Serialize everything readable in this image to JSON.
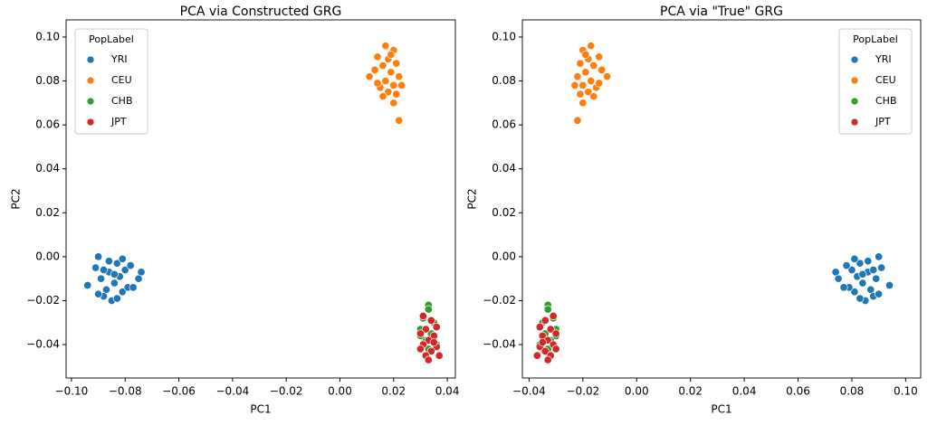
{
  "chart_data": [
    {
      "type": "scatter",
      "title": "PCA via Constructed GRG",
      "x_label": "PC1",
      "y_label": "PC2",
      "legend_title": "PopLabel",
      "legend": "upper left",
      "xlim": [
        -0.102,
        0.043
      ],
      "ylim": [
        -0.0552,
        0.1078
      ],
      "xticks": [
        {
          "value": -0.1,
          "label": "−0.10"
        },
        {
          "value": -0.08,
          "label": "−0.08"
        },
        {
          "value": -0.06,
          "label": "−0.06"
        },
        {
          "value": -0.04,
          "label": "−0.04"
        },
        {
          "value": -0.02,
          "label": "−0.02"
        },
        {
          "value": 0,
          "label": "0.00"
        },
        {
          "value": 0.02,
          "label": "0.02"
        },
        {
          "value": 0.04,
          "label": "0.04"
        }
      ],
      "yticks": [
        {
          "value": -0.04,
          "label": "−0.04"
        },
        {
          "value": -0.02,
          "label": "−0.02"
        },
        {
          "value": 0,
          "label": "0.00"
        },
        {
          "value": 0.02,
          "label": "0.02"
        },
        {
          "value": 0.04,
          "label": "0.04"
        },
        {
          "value": 0.06,
          "label": "0.06"
        },
        {
          "value": 0.08,
          "label": "0.08"
        },
        {
          "value": 0.1,
          "label": "0.10"
        }
      ],
      "series": [
        {
          "name": "YRI",
          "color": "#1f77b4",
          "x": [
            -0.09,
            -0.094,
            -0.091,
            -0.089,
            -0.087,
            -0.086,
            -0.085,
            -0.084,
            -0.083,
            -0.082,
            -0.081,
            -0.08,
            -0.079,
            -0.078,
            -0.077,
            -0.074,
            -0.075,
            -0.088,
            -0.083,
            -0.086,
            -0.09,
            -0.081,
            -0.088,
            -0.084
          ],
          "y": [
            0.0,
            -0.013,
            -0.005,
            -0.01,
            -0.015,
            -0.007,
            -0.02,
            -0.012,
            -0.003,
            -0.009,
            -0.016,
            -0.006,
            -0.014,
            -0.004,
            -0.014,
            -0.007,
            -0.01,
            -0.018,
            -0.019,
            -0.002,
            -0.017,
            -0.001,
            -0.006,
            -0.008
          ]
        },
        {
          "name": "CEU",
          "color": "#ff7f0e",
          "x": [
            0.017,
            0.02,
            0.014,
            0.018,
            0.016,
            0.021,
            0.013,
            0.019,
            0.022,
            0.011,
            0.017,
            0.02,
            0.015,
            0.023,
            0.018,
            0.016,
            0.021,
            0.02,
            0.022,
            0.019,
            0.014
          ],
          "y": [
            0.096,
            0.094,
            0.091,
            0.09,
            0.087,
            0.088,
            0.085,
            0.084,
            0.082,
            0.082,
            0.08,
            0.078,
            0.077,
            0.078,
            0.075,
            0.073,
            0.074,
            0.07,
            0.062,
            0.092,
            0.079
          ]
        },
        {
          "name": "CHB",
          "color": "#2ca02c",
          "x": [
            0.033,
            0.033,
            0.031,
            0.035,
            0.03,
            0.034,
            0.032,
            0.036,
            0.03,
            0.033
          ],
          "y": [
            -0.022,
            -0.024,
            -0.028,
            -0.03,
            -0.033,
            -0.035,
            -0.038,
            -0.04,
            -0.036,
            -0.042
          ]
        },
        {
          "name": "JPT",
          "color": "#d62728",
          "x": [
            0.031,
            0.034,
            0.036,
            0.032,
            0.03,
            0.035,
            0.033,
            0.031,
            0.036,
            0.034,
            0.032,
            0.037,
            0.03,
            0.033,
            0.035
          ],
          "y": [
            -0.027,
            -0.029,
            -0.032,
            -0.033,
            -0.035,
            -0.036,
            -0.038,
            -0.04,
            -0.041,
            -0.043,
            -0.045,
            -0.045,
            -0.042,
            -0.047,
            -0.039
          ]
        }
      ]
    },
    {
      "type": "scatter",
      "title": "PCA via \"True\" GRG",
      "x_label": "PC1",
      "y_label": "PC2",
      "legend_title": "PopLabel",
      "legend": "upper right",
      "xlim": [
        -0.0425,
        0.1056
      ],
      "ylim": [
        -0.0552,
        0.1078
      ],
      "xticks": [
        {
          "value": -0.04,
          "label": "−0.04"
        },
        {
          "value": -0.02,
          "label": "−0.02"
        },
        {
          "value": 0,
          "label": "0.00"
        },
        {
          "value": 0.02,
          "label": "0.02"
        },
        {
          "value": 0.04,
          "label": "0.04"
        },
        {
          "value": 0.06,
          "label": "0.06"
        },
        {
          "value": 0.08,
          "label": "0.08"
        },
        {
          "value": 0.1,
          "label": "0.10"
        }
      ],
      "yticks": [
        {
          "value": -0.04,
          "label": "−0.04"
        },
        {
          "value": -0.02,
          "label": "−0.02"
        },
        {
          "value": 0,
          "label": "0.00"
        },
        {
          "value": 0.02,
          "label": "0.02"
        },
        {
          "value": 0.04,
          "label": "0.04"
        },
        {
          "value": 0.06,
          "label": "0.06"
        },
        {
          "value": 0.08,
          "label": "0.08"
        },
        {
          "value": 0.1,
          "label": "0.10"
        }
      ],
      "series": [
        {
          "name": "YRI",
          "color": "#1f77b4",
          "x": [
            0.09,
            0.094,
            0.091,
            0.089,
            0.087,
            0.086,
            0.085,
            0.084,
            0.083,
            0.082,
            0.081,
            0.08,
            0.079,
            0.078,
            0.077,
            0.074,
            0.075,
            0.088,
            0.083,
            0.086,
            0.09,
            0.081,
            0.088,
            0.084
          ],
          "y": [
            0.0,
            -0.013,
            -0.005,
            -0.01,
            -0.015,
            -0.007,
            -0.02,
            -0.012,
            -0.003,
            -0.009,
            -0.016,
            -0.006,
            -0.014,
            -0.004,
            -0.014,
            -0.007,
            -0.01,
            -0.018,
            -0.019,
            -0.002,
            -0.017,
            -0.001,
            -0.006,
            -0.008
          ]
        },
        {
          "name": "CEU",
          "color": "#ff7f0e",
          "x": [
            -0.017,
            -0.02,
            -0.014,
            -0.018,
            -0.016,
            -0.021,
            -0.013,
            -0.019,
            -0.022,
            -0.011,
            -0.017,
            -0.02,
            -0.015,
            -0.023,
            -0.018,
            -0.016,
            -0.021,
            -0.02,
            -0.022,
            -0.019,
            -0.014
          ],
          "y": [
            0.096,
            0.094,
            0.091,
            0.09,
            0.087,
            0.088,
            0.085,
            0.084,
            0.082,
            0.082,
            0.08,
            0.078,
            0.077,
            0.078,
            0.075,
            0.073,
            0.074,
            0.07,
            0.062,
            0.092,
            0.079
          ]
        },
        {
          "name": "CHB",
          "color": "#2ca02c",
          "x": [
            -0.033,
            -0.033,
            -0.031,
            -0.035,
            -0.03,
            -0.034,
            -0.032,
            -0.036,
            -0.03,
            -0.033
          ],
          "y": [
            -0.022,
            -0.024,
            -0.028,
            -0.03,
            -0.033,
            -0.035,
            -0.038,
            -0.04,
            -0.036,
            -0.042
          ]
        },
        {
          "name": "JPT",
          "color": "#d62728",
          "x": [
            -0.031,
            -0.034,
            -0.036,
            -0.032,
            -0.03,
            -0.035,
            -0.033,
            -0.031,
            -0.036,
            -0.034,
            -0.032,
            -0.037,
            -0.03,
            -0.033,
            -0.035
          ],
          "y": [
            -0.027,
            -0.029,
            -0.032,
            -0.033,
            -0.035,
            -0.036,
            -0.038,
            -0.04,
            -0.041,
            -0.043,
            -0.045,
            -0.045,
            -0.042,
            -0.047,
            -0.039
          ]
        }
      ]
    }
  ]
}
